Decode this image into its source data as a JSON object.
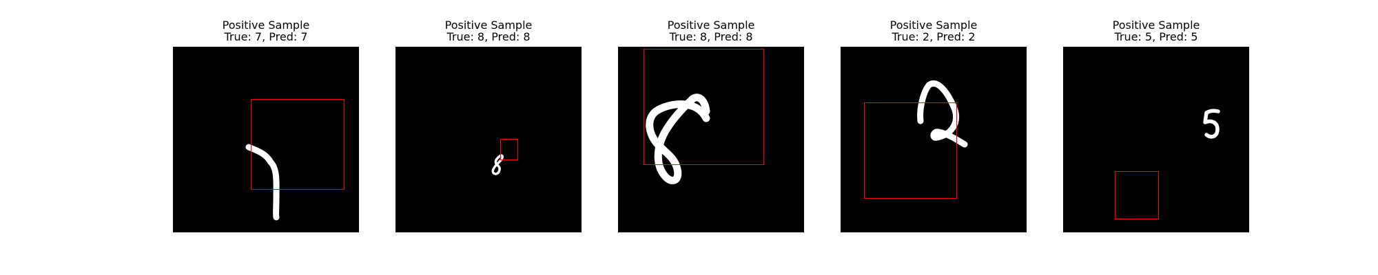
{
  "panels": [
    {
      "title": "Positive Sample",
      "subtitle": "True: 7, Pred: 7",
      "digit": "7"
    },
    {
      "title": "Positive Sample",
      "subtitle": "True: 8, Pred: 8",
      "digit": "8"
    },
    {
      "title": "Positive Sample",
      "subtitle": "True: 8, Pred: 8",
      "digit": "8"
    },
    {
      "title": "Positive Sample",
      "subtitle": "True: 2, Pred: 2",
      "digit": "2"
    },
    {
      "title": "Positive Sample",
      "subtitle": "True: 5, Pred: 5",
      "digit": "5"
    }
  ],
  "colors": {
    "background": "#000000",
    "stroke": "#ffffff",
    "box": "#ff0000"
  }
}
